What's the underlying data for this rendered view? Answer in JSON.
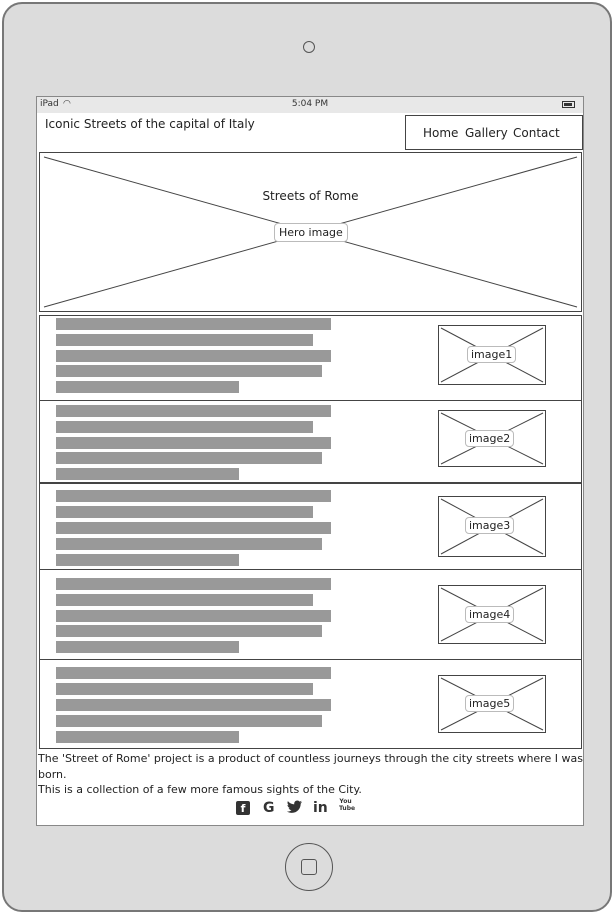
{
  "statusbar": {
    "carrier": "iPad",
    "time": "5:04 PM",
    "wifi_icon": "wifi-icon",
    "battery_icon": "battery-icon"
  },
  "header": {
    "title": "Iconic Streets of the capital of Italy"
  },
  "nav": {
    "items": [
      {
        "label": "Home"
      },
      {
        "label": "Gallery"
      },
      {
        "label": "Contact"
      }
    ]
  },
  "hero": {
    "title": "Streets of Rome",
    "image_label": "Hero image"
  },
  "articles": [
    {
      "image_label": "image1"
    },
    {
      "image_label": "image2"
    },
    {
      "image_label": "image3"
    },
    {
      "image_label": "image4"
    },
    {
      "image_label": "image5"
    }
  ],
  "footer": {
    "text_line1": "The 'Street of Rome' project is a product of countless journeys through the city streets where I was born.",
    "text_line2": "This is a collection of a few more famous sights of the City.",
    "social": [
      {
        "icon": "facebook-icon",
        "glyph": "f"
      },
      {
        "icon": "google-icon",
        "glyph": "G"
      },
      {
        "icon": "twitter-icon",
        "glyph": "t"
      },
      {
        "icon": "linkedin-icon",
        "glyph": "in"
      },
      {
        "icon": "youtube-icon",
        "glyph": "You Tube"
      }
    ]
  },
  "colors": {
    "device": "#dcdcdc",
    "placeholder_bar": "#999999",
    "outline": "#444444"
  }
}
